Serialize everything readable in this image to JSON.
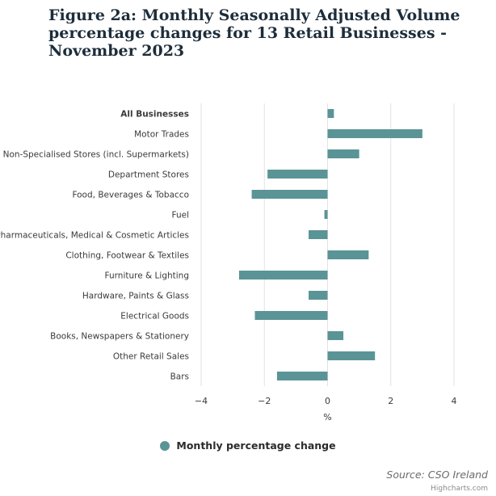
{
  "chart_data": {
    "type": "bar",
    "orientation": "horizontal",
    "title": "Figure 2a: Monthly Seasonally Adjusted Volume percentage changes for 13 Retail Businesses - November 2023",
    "categories": [
      "All Businesses",
      "Motor Trades",
      "Non-Specialised Stores (incl. Supermarkets)",
      "Department Stores",
      "Food, Beverages & Tobacco",
      "Fuel",
      "Pharmaceuticals, Medical & Cosmetic Articles",
      "Clothing, Footwear & Textiles",
      "Furniture & Lighting",
      "Hardware, Paints & Glass",
      "Electrical Goods",
      "Books, Newspapers & Stationery",
      "Other Retail Sales",
      "Bars"
    ],
    "bold_categories": [
      "All Businesses"
    ],
    "series": [
      {
        "name": "Monthly percentage change",
        "color": "#5a9496",
        "values": [
          0.2,
          3.0,
          1.0,
          -1.9,
          -2.4,
          -0.1,
          -0.6,
          1.3,
          -2.8,
          -0.6,
          -2.3,
          0.5,
          1.5,
          -1.6
        ]
      }
    ],
    "xlabel": "%",
    "xlim": [
      -4,
      4
    ],
    "xticks": [
      -4,
      -2,
      0,
      2,
      4
    ],
    "xtick_labels": [
      "−4",
      "−2",
      "0",
      "2",
      "4"
    ],
    "grid": true,
    "legend_position": "bottom"
  },
  "source": "Source: CSO Ireland",
  "credits": "Highcharts.com"
}
